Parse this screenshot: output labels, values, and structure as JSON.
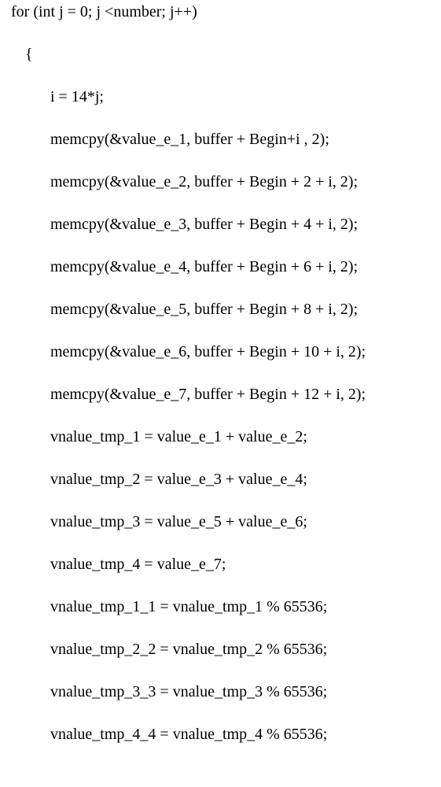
{
  "font": {
    "family": "Times New Roman",
    "size_pt": 15,
    "color": "#000000"
  },
  "background_color": "#ffffff",
  "lines": [
    {
      "indent": 0,
      "text": "for (int j = 0; j <number; j++)"
    },
    {
      "indent": 1,
      "text": "{"
    },
    {
      "indent": 2,
      "text": "i = 14*j;"
    },
    {
      "indent": 2,
      "text": "memcpy(&value_e_1, buffer + Begin+i , 2);"
    },
    {
      "indent": 2,
      "text": "memcpy(&value_e_2, buffer + Begin + 2 + i, 2);"
    },
    {
      "indent": 2,
      "text": "memcpy(&value_e_3, buffer + Begin + 4 + i, 2);"
    },
    {
      "indent": 2,
      "text": "memcpy(&value_e_4, buffer + Begin + 6 + i, 2);"
    },
    {
      "indent": 2,
      "text": "memcpy(&value_e_5, buffer + Begin + 8 + i, 2);"
    },
    {
      "indent": 2,
      "text": "memcpy(&value_e_6, buffer + Begin + 10 + i, 2);"
    },
    {
      "indent": 2,
      "text": "memcpy(&value_e_7, buffer + Begin + 12 + i, 2);"
    },
    {
      "indent": 2,
      "text": "vnalue_tmp_1 = value_e_1 + value_e_2;"
    },
    {
      "indent": 2,
      "text": "vnalue_tmp_2 = value_e_3 + value_e_4;"
    },
    {
      "indent": 2,
      "text": "vnalue_tmp_3 = value_e_5 + value_e_6;"
    },
    {
      "indent": 2,
      "text": "vnalue_tmp_4 = value_e_7;"
    },
    {
      "indent": 2,
      "text": "vnalue_tmp_1_1 = vnalue_tmp_1 % 65536;"
    },
    {
      "indent": 2,
      "text": "vnalue_tmp_2_2 = vnalue_tmp_2 % 65536;"
    },
    {
      "indent": 2,
      "text": "vnalue_tmp_3_3 = vnalue_tmp_3 % 65536;"
    },
    {
      "indent": 2,
      "text": "vnalue_tmp_4_4 = vnalue_tmp_4 % 65536;"
    }
  ]
}
